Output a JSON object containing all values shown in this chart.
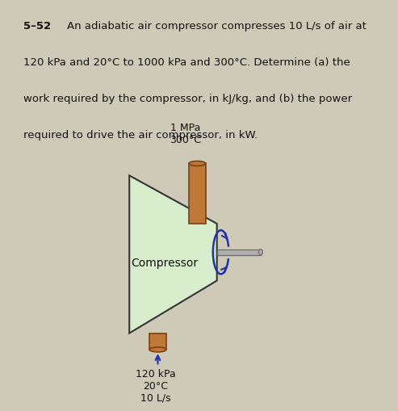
{
  "title_bold": "5–52",
  "title_line1": "An adiabatic air compressor compresses 10 L/s of air at",
  "title_line2": "120 kPa and 20°C to 1000 kPa and 300°C. Determine (a) the",
  "title_line3": "work required by the compressor, in kJ/kg, and (b) the power",
  "title_line4": "required to drive the air compressor, in kW.",
  "compressor_label": "Compressor",
  "inlet_label": "120 kPa\n20°C\n10 L/s",
  "outlet_label": "1 MPa\n300°C",
  "bg_color": "#cfc9b8",
  "trapezoid_fill": "#d8edcc",
  "trapezoid_edge": "#333333",
  "pipe_fill": "#c07838",
  "pipe_edge": "#7a4010",
  "shaft_fill": "#b0b0b0",
  "shaft_edge": "#707070",
  "arrow_color": "#2233aa",
  "text_color": "#111111"
}
